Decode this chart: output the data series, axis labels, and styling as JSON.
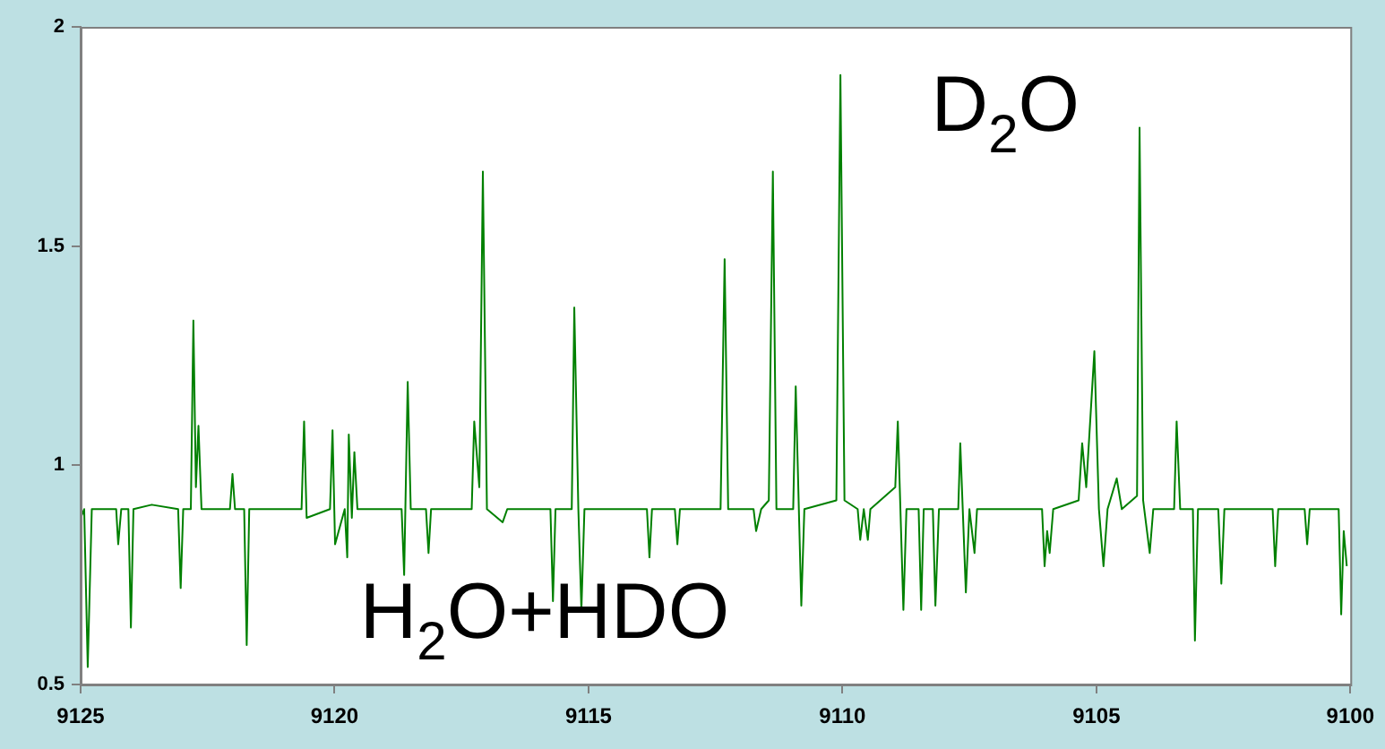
{
  "chart_data": {
    "type": "line",
    "xlim": [
      9125,
      9100
    ],
    "xticks": [
      9125,
      9120,
      9115,
      9110,
      9105,
      9100
    ],
    "ylim": [
      0.5,
      2
    ],
    "yticks": [
      0.5,
      1,
      1.5,
      2
    ],
    "grid": false,
    "legend": false,
    "marker": "none",
    "line_style": "solid",
    "annotations": [
      "D$_{2}$O",
      "H$_{2}$O+HDO"
    ],
    "series": [
      {
        "color": "#008000",
        "x": [
          9125,
          9124.93,
          9124.86,
          9124.78,
          9124.3,
          9124.26,
          9124.2,
          9124.06,
          9124.01,
          9123.96,
          9123.6,
          9123.08,
          9123.03,
          9122.98,
          9122.83,
          9122.78,
          9122.73,
          9122.68,
          9122.62,
          9122.06,
          9122.01,
          9121.96,
          9121.78,
          9121.73,
          9121.68,
          9120.65,
          9120.6,
          9120.55,
          9120.09,
          9120.04,
          9119.99,
          9119.8,
          9119.75,
          9119.72,
          9119.66,
          9119.61,
          9119.55,
          9118.68,
          9118.63,
          9118.56,
          9118.5,
          9118.2,
          9118.15,
          9118.1,
          9117.3,
          9117.25,
          9117.15,
          9117.08,
          9117.0,
          9116.69,
          9116.6,
          9115.75,
          9115.7,
          9115.65,
          9115.33,
          9115.28,
          9115.2,
          9115.14,
          9115.08,
          9114.0,
          9113.85,
          9113.8,
          9113.75,
          9113.3,
          9113.25,
          9113.2,
          9112.4,
          9112.32,
          9112.25,
          9111.75,
          9111.7,
          9111.6,
          9111.45,
          9111.37,
          9111.3,
          9110.97,
          9110.92,
          9110.81,
          9110.75,
          9110.12,
          9110.04,
          9109.96,
          9109.7,
          9109.65,
          9109.58,
          9109.5,
          9109.45,
          9108.96,
          9108.91,
          9108.8,
          9108.74,
          9108.5,
          9108.45,
          9108.4,
          9108.22,
          9108.17,
          9108.1,
          9107.72,
          9107.68,
          9107.57,
          9107.5,
          9107.4,
          9107.35,
          9106.07,
          9106.02,
          9105.97,
          9105.92,
          9105.85,
          9105.35,
          9105.28,
          9105.2,
          9105.04,
          9104.95,
          9104.86,
          9104.78,
          9104.6,
          9104.5,
          9104.2,
          9104.15,
          9104.08,
          9103.95,
          9103.88,
          9103.47,
          9103.42,
          9103.35,
          9103.1,
          9103.06,
          9103.0,
          9102.6,
          9102.54,
          9102.48,
          9101.53,
          9101.48,
          9101.42,
          9100.9,
          9100.85,
          9100.8,
          9100.23,
          9100.18,
          9100.13,
          9100.07
        ],
        "values": [
          0.88,
          0.9,
          0.54,
          0.9,
          0.9,
          0.82,
          0.9,
          0.9,
          0.63,
          0.9,
          0.91,
          0.9,
          0.72,
          0.9,
          0.9,
          1.33,
          0.95,
          1.09,
          0.9,
          0.9,
          0.98,
          0.9,
          0.9,
          0.59,
          0.9,
          0.9,
          1.1,
          0.88,
          0.9,
          1.08,
          0.82,
          0.9,
          0.79,
          1.07,
          0.88,
          1.03,
          0.9,
          0.9,
          0.75,
          1.19,
          0.9,
          0.9,
          0.8,
          0.9,
          0.9,
          1.1,
          0.95,
          1.67,
          0.9,
          0.87,
          0.9,
          0.9,
          0.69,
          0.9,
          0.9,
          1.36,
          0.9,
          0.67,
          0.9,
          0.9,
          0.9,
          0.79,
          0.9,
          0.9,
          0.82,
          0.9,
          0.9,
          1.47,
          0.9,
          0.9,
          0.85,
          0.9,
          0.92,
          1.67,
          0.9,
          0.9,
          1.18,
          0.68,
          0.9,
          0.92,
          1.89,
          0.92,
          0.9,
          0.83,
          0.9,
          0.83,
          0.9,
          0.95,
          1.1,
          0.67,
          0.9,
          0.9,
          0.67,
          0.9,
          0.9,
          0.68,
          0.9,
          0.9,
          1.05,
          0.71,
          0.9,
          0.8,
          0.9,
          0.9,
          0.77,
          0.85,
          0.8,
          0.9,
          0.92,
          1.05,
          0.95,
          1.26,
          0.9,
          0.77,
          0.9,
          0.97,
          0.9,
          0.93,
          1.77,
          0.92,
          0.8,
          0.9,
          0.9,
          1.1,
          0.9,
          0.9,
          0.6,
          0.9,
          0.9,
          0.73,
          0.9,
          0.9,
          0.77,
          0.9,
          0.9,
          0.82,
          0.9,
          0.9,
          0.66,
          0.85,
          0.77
        ]
      }
    ]
  }
}
